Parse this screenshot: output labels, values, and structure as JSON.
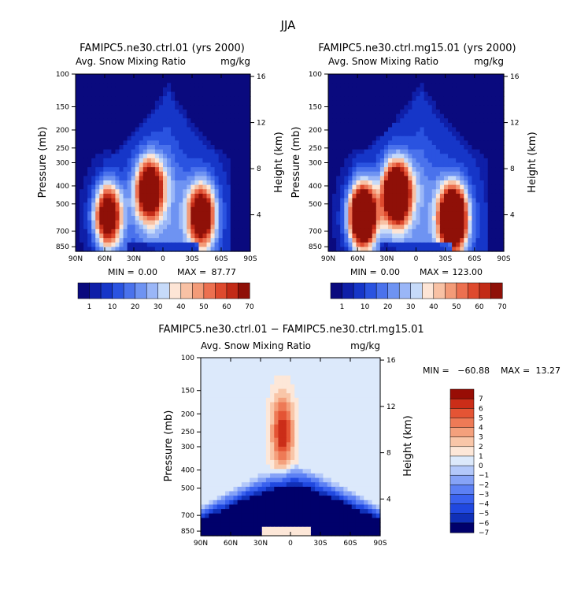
{
  "figure_title": "JJA",
  "colors": {
    "abs": [
      "#0a0a7e",
      "#0f1fa8",
      "#1636c8",
      "#2a53e0",
      "#4a72ec",
      "#6e93f2",
      "#9ab6f7",
      "#c6daf9",
      "#fde5d6",
      "#f8c1a4",
      "#f39b78",
      "#ec7050",
      "#de4a2e",
      "#c22b17",
      "#8f1008"
    ],
    "diff": [
      "#00006b",
      "#1030b8",
      "#2048e0",
      "#3a62ef",
      "#5c80f4",
      "#86a3f7",
      "#b3c8fa",
      "#dce9fb",
      "#fde7d8",
      "#f9c6a8",
      "#f4a07c",
      "#ee7a56",
      "#e45434",
      "#cb2d18",
      "#980d05"
    ]
  },
  "chart_data": [
    {
      "type": "heatmap",
      "panel": "top-left",
      "title": "FAMIPC5.ne30.ctrl.01 (yrs 2000)",
      "subtitle_left": "Avg. Snow Mixing Ratio",
      "subtitle_right": "mg/kg",
      "xlabel": "",
      "ylabel": "Pressure (mb)",
      "ylabel_right": "Height (km)",
      "x_ticks": [
        "90N",
        "60N",
        "30N",
        "0",
        "30S",
        "60S",
        "90S"
      ],
      "y_ticks": [
        "100",
        "150",
        "200",
        "250",
        "300",
        "400",
        "500",
        "700",
        "850"
      ],
      "y_right_ticks": [
        "16",
        "12",
        "8",
        "4"
      ],
      "stats": {
        "min_label": "MIN =",
        "min": "0.00",
        "max_label": "MAX =",
        "max": "87.77"
      },
      "colorbar_labels": [
        "1",
        "10",
        "20",
        "30",
        "40",
        "50",
        "60",
        "70"
      ],
      "features": [
        {
          "lat": 57,
          "p": 580,
          "amp": 90
        },
        {
          "lat": 14,
          "p": 420,
          "amp": 88
        },
        {
          "lat": -40,
          "p": 580,
          "amp": 85
        }
      ],
      "cap_lat_range": [
        60,
        -70
      ],
      "cap_top_p": 110,
      "scale_max": 87.77
    },
    {
      "type": "heatmap",
      "panel": "top-right",
      "title": "FAMIPC5.ne30.ctrl.mg15.01 (yrs 2000)",
      "subtitle_left": "Avg. Snow Mixing Ratio",
      "subtitle_right": "mg/kg",
      "xlabel": "",
      "ylabel": "Pressure (mb)",
      "ylabel_right": "Height (km)",
      "x_ticks": [
        "90N",
        "60N",
        "30N",
        "0",
        "30S",
        "60S",
        "90S"
      ],
      "y_ticks": [
        "100",
        "150",
        "200",
        "250",
        "300",
        "400",
        "500",
        "700",
        "850"
      ],
      "y_right_ticks": [
        "16",
        "12",
        "8",
        "4"
      ],
      "stats": {
        "min_label": "MIN =",
        "min": "0.00",
        "max_label": "MAX =",
        "max": "123.00"
      },
      "colorbar_labels": [
        "1",
        "10",
        "20",
        "30",
        "40",
        "50",
        "60",
        "70"
      ],
      "features": [
        {
          "lat": 55,
          "p": 580,
          "amp": 120
        },
        {
          "lat": 20,
          "p": 440,
          "amp": 110
        },
        {
          "lat": -38,
          "p": 600,
          "amp": 118
        }
      ],
      "cap_lat_range": [
        65,
        -75
      ],
      "cap_top_p": 108,
      "scale_max": 123.0
    },
    {
      "type": "heatmap",
      "panel": "bottom",
      "title": "FAMIPC5.ne30.ctrl.01 − FAMIPC5.ne30.ctrl.mg15.01",
      "subtitle_left": "Avg. Snow Mixing Ratio",
      "subtitle_right": "mg/kg",
      "xlabel": "",
      "ylabel": "Pressure (mb)",
      "ylabel_right": "Height (km)",
      "x_ticks": [
        "90N",
        "60N",
        "30N",
        "0",
        "30S",
        "60S",
        "90S"
      ],
      "y_ticks": [
        "100",
        "150",
        "200",
        "250",
        "300",
        "400",
        "500",
        "700",
        "850"
      ],
      "y_right_ticks": [
        "16",
        "12",
        "8",
        "4"
      ],
      "stats": {
        "min_label": "MIN =",
        "min": "−60.88",
        "max_label": "MAX =",
        "max": "13.27"
      },
      "colorbar_labels": [
        "7",
        "6",
        "5",
        "4",
        "3",
        "2",
        "1",
        "0",
        "−1",
        "−2",
        "−3",
        "−4",
        "−5",
        "−6",
        "−7"
      ],
      "features": [
        {
          "lat": 8,
          "p": 250,
          "amp": 7
        }
      ],
      "scale_max": 7
    }
  ]
}
